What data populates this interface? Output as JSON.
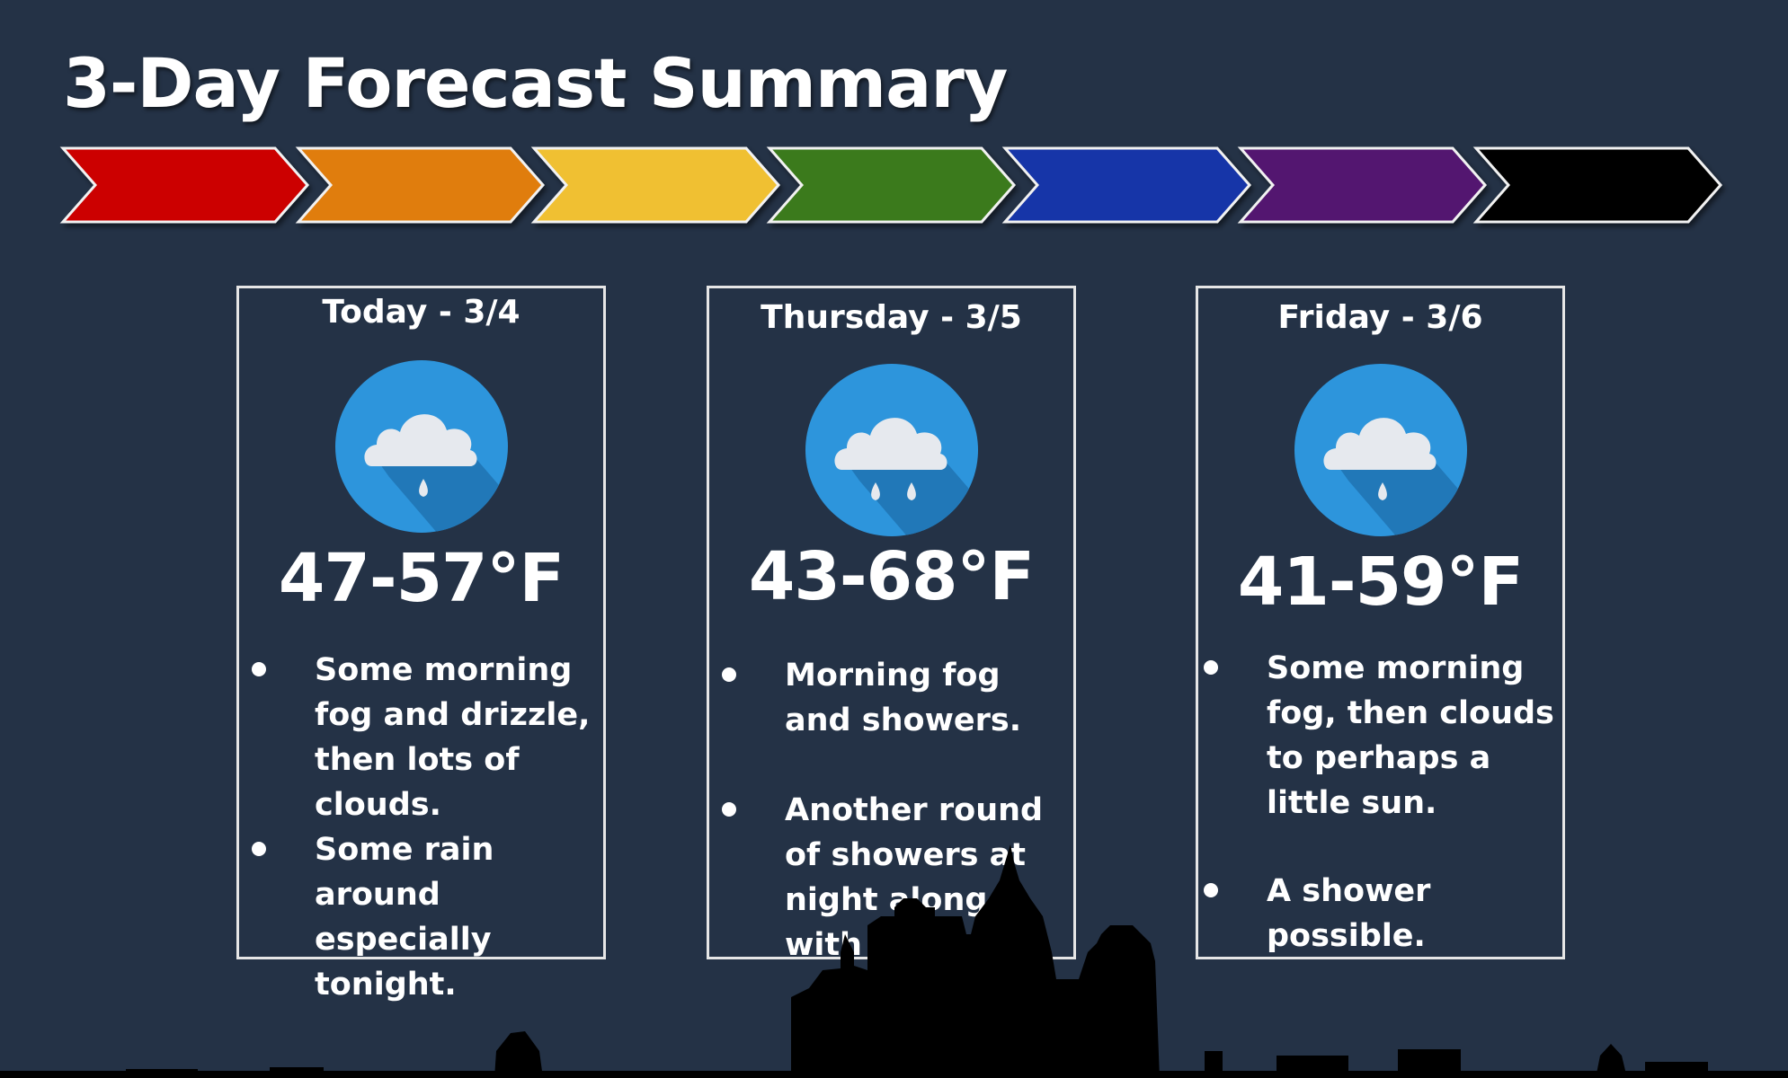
{
  "title": "3-Day Forecast Summary",
  "chevron_colors": [
    "#cc0000",
    "#e07d10",
    "#f0c030",
    "#3a7a1a",
    "#1535a8",
    "#521570",
    "#000000"
  ],
  "days": [
    {
      "header": "Today - 3/4",
      "icon": "cloud-rain-icon",
      "drops": 1,
      "temp": "47-57°F",
      "bullets": [
        "Some morning fog and drizzle, then lots of clouds.",
        "Some rain around especially tonight."
      ]
    },
    {
      "header": "Thursday - 3/5",
      "icon": "cloud-rain-icon",
      "drops": 2,
      "temp": "43-68°F",
      "bullets": [
        "Morning fog and showers.",
        "Another round of showers at night along with some fog."
      ]
    },
    {
      "header": "Friday - 3/6",
      "icon": "cloud-rain-icon",
      "drops": 1,
      "temp": "41-59°F",
      "bullets": [
        "Some morning fog, then clouds to perhaps a little sun.",
        "A shower possible."
      ]
    }
  ]
}
